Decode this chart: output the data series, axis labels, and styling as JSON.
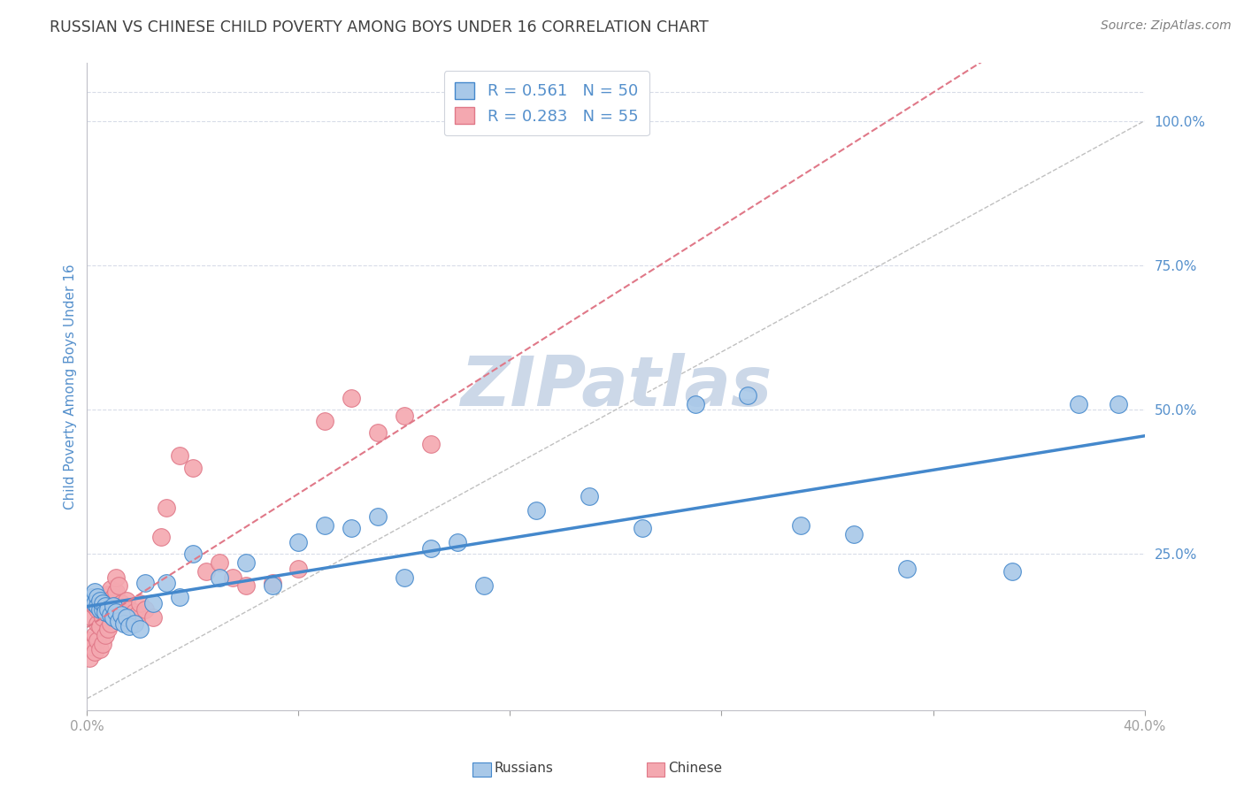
{
  "title": "RUSSIAN VS CHINESE CHILD POVERTY AMONG BOYS UNDER 16 CORRELATION CHART",
  "source": "Source: ZipAtlas.com",
  "ylabel": "Child Poverty Among Boys Under 16",
  "ytick_labels": [
    "100.0%",
    "75.0%",
    "50.0%",
    "25.0%"
  ],
  "ytick_values": [
    1.0,
    0.75,
    0.5,
    0.25
  ],
  "xlim": [
    0.0,
    0.4
  ],
  "ylim": [
    -0.02,
    1.1
  ],
  "russian_R": 0.561,
  "russian_N": 50,
  "chinese_R": 0.283,
  "chinese_N": 55,
  "russian_color": "#a8c8e8",
  "chinese_color": "#f4a8b0",
  "russian_line_color": "#4488cc",
  "chinese_line_color": "#e07888",
  "trendline_color": "#c0c0c0",
  "grid_color": "#d8dce8",
  "title_color": "#404040",
  "source_color": "#808080",
  "axis_label_color": "#5590cc",
  "ytick_color": "#5590cc",
  "watermark_color": "#ccd8e8",
  "legend_box_russian": "#a8c8e8",
  "legend_box_chinese": "#f4a8b0",
  "russian_x": [
    0.002,
    0.003,
    0.003,
    0.004,
    0.004,
    0.005,
    0.005,
    0.006,
    0.006,
    0.007,
    0.007,
    0.008,
    0.009,
    0.01,
    0.01,
    0.011,
    0.012,
    0.013,
    0.014,
    0.015,
    0.016,
    0.018,
    0.02,
    0.022,
    0.025,
    0.03,
    0.035,
    0.04,
    0.05,
    0.06,
    0.07,
    0.08,
    0.09,
    0.1,
    0.11,
    0.12,
    0.13,
    0.14,
    0.15,
    0.17,
    0.19,
    0.21,
    0.23,
    0.25,
    0.27,
    0.29,
    0.31,
    0.35,
    0.375,
    0.39
  ],
  "russian_y": [
    0.175,
    0.185,
    0.165,
    0.175,
    0.16,
    0.155,
    0.17,
    0.155,
    0.165,
    0.16,
    0.15,
    0.155,
    0.145,
    0.16,
    0.14,
    0.15,
    0.135,
    0.145,
    0.13,
    0.14,
    0.125,
    0.13,
    0.12,
    0.2,
    0.165,
    0.2,
    0.175,
    0.25,
    0.21,
    0.235,
    0.195,
    0.27,
    0.3,
    0.295,
    0.315,
    0.21,
    0.26,
    0.27,
    0.195,
    0.325,
    0.35,
    0.295,
    0.51,
    0.525,
    0.3,
    0.285,
    0.225,
    0.22,
    0.51,
    0.51
  ],
  "chinese_x": [
    0.001,
    0.001,
    0.002,
    0.002,
    0.003,
    0.003,
    0.003,
    0.004,
    0.004,
    0.004,
    0.005,
    0.005,
    0.005,
    0.006,
    0.006,
    0.006,
    0.007,
    0.007,
    0.007,
    0.008,
    0.008,
    0.008,
    0.009,
    0.009,
    0.009,
    0.01,
    0.01,
    0.011,
    0.011,
    0.012,
    0.012,
    0.013,
    0.014,
    0.015,
    0.016,
    0.018,
    0.019,
    0.02,
    0.022,
    0.025,
    0.028,
    0.03,
    0.035,
    0.04,
    0.045,
    0.05,
    0.055,
    0.06,
    0.07,
    0.08,
    0.09,
    0.1,
    0.11,
    0.12,
    0.13
  ],
  "chinese_y": [
    0.07,
    0.1,
    0.09,
    0.14,
    0.08,
    0.11,
    0.16,
    0.1,
    0.13,
    0.155,
    0.085,
    0.125,
    0.16,
    0.095,
    0.14,
    0.165,
    0.11,
    0.15,
    0.175,
    0.12,
    0.155,
    0.18,
    0.13,
    0.165,
    0.19,
    0.14,
    0.175,
    0.185,
    0.21,
    0.155,
    0.195,
    0.165,
    0.155,
    0.17,
    0.155,
    0.15,
    0.145,
    0.165,
    0.155,
    0.14,
    0.28,
    0.33,
    0.42,
    0.4,
    0.22,
    0.235,
    0.21,
    0.195,
    0.2,
    0.225,
    0.48,
    0.52,
    0.46,
    0.49,
    0.44
  ]
}
